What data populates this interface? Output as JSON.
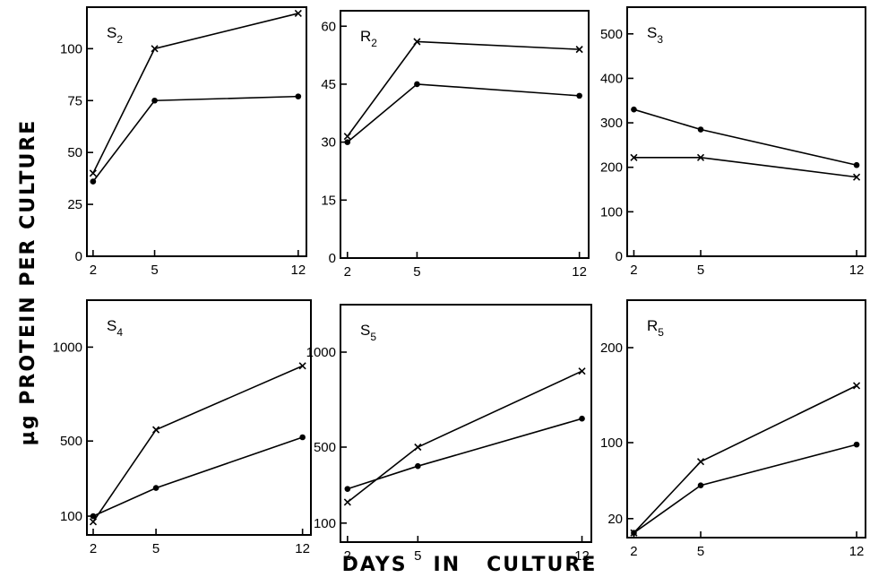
{
  "figure": {
    "ylabel": "µg PROTEIN PER CULTURE",
    "xlabel": "DAYS   IN   CULTURE"
  },
  "chart_data": [
    {
      "type": "line",
      "label": "S",
      "subscript": "2",
      "x": [
        2,
        5,
        12
      ],
      "xticks": [
        2,
        5,
        12
      ],
      "xlim": [
        1.7,
        12.4
      ],
      "ylim": [
        0,
        120
      ],
      "yticks": [
        0,
        25,
        50,
        75,
        100
      ],
      "series": [
        {
          "marker": "x",
          "values": [
            40,
            100,
            117
          ]
        },
        {
          "marker": "dot",
          "values": [
            36,
            75,
            77
          ]
        }
      ]
    },
    {
      "type": "line",
      "label": "R",
      "subscript": "2",
      "x": [
        2,
        5,
        12
      ],
      "xticks": [
        2,
        5,
        12
      ],
      "xlim": [
        1.7,
        12.4
      ],
      "ylim": [
        0,
        64
      ],
      "yticks": [
        0,
        15,
        30,
        45,
        60
      ],
      "series": [
        {
          "marker": "x",
          "values": [
            31.5,
            56,
            54
          ]
        },
        {
          "marker": "dot",
          "values": [
            30,
            45,
            42
          ]
        }
      ]
    },
    {
      "type": "line",
      "label": "S",
      "subscript": "3",
      "x": [
        2,
        5,
        12
      ],
      "xticks": [
        2,
        5,
        12
      ],
      "xlim": [
        1.7,
        12.4
      ],
      "ylim": [
        0,
        560
      ],
      "yticks": [
        0,
        100,
        200,
        300,
        400,
        500
      ],
      "series": [
        {
          "marker": "dot",
          "values": [
            330,
            285,
            205
          ]
        },
        {
          "marker": "x",
          "values": [
            222,
            222,
            178
          ]
        }
      ]
    },
    {
      "type": "line",
      "label": "S",
      "subscript": "4",
      "x": [
        2,
        5,
        12
      ],
      "xticks": [
        2,
        5,
        12
      ],
      "xlim": [
        1.7,
        12.4
      ],
      "ylim": [
        0,
        1250
      ],
      "yticks": [
        100,
        500,
        1000
      ],
      "series": [
        {
          "marker": "x",
          "values": [
            70,
            560,
            900
          ]
        },
        {
          "marker": "dot",
          "values": [
            100,
            250,
            520
          ]
        }
      ]
    },
    {
      "type": "line",
      "label": "S",
      "subscript": "5",
      "x": [
        2,
        5,
        12
      ],
      "xticks": [
        2,
        5,
        12
      ],
      "xlim": [
        1.7,
        12.4
      ],
      "ylim": [
        0,
        1250
      ],
      "yticks": [
        100,
        500,
        1000
      ],
      "series": [
        {
          "marker": "x",
          "values": [
            210,
            500,
            900
          ]
        },
        {
          "marker": "dot",
          "values": [
            280,
            400,
            650
          ]
        }
      ]
    },
    {
      "type": "line",
      "label": "R",
      "subscript": "5",
      "x": [
        2,
        5,
        12
      ],
      "xticks": [
        2,
        5,
        12
      ],
      "xlim": [
        1.7,
        12.4
      ],
      "ylim": [
        0,
        250
      ],
      "yticks": [
        20,
        100,
        200
      ],
      "series": [
        {
          "marker": "x",
          "values": [
            5,
            80,
            160
          ]
        },
        {
          "marker": "dot",
          "values": [
            5,
            55,
            98
          ]
        }
      ]
    }
  ]
}
